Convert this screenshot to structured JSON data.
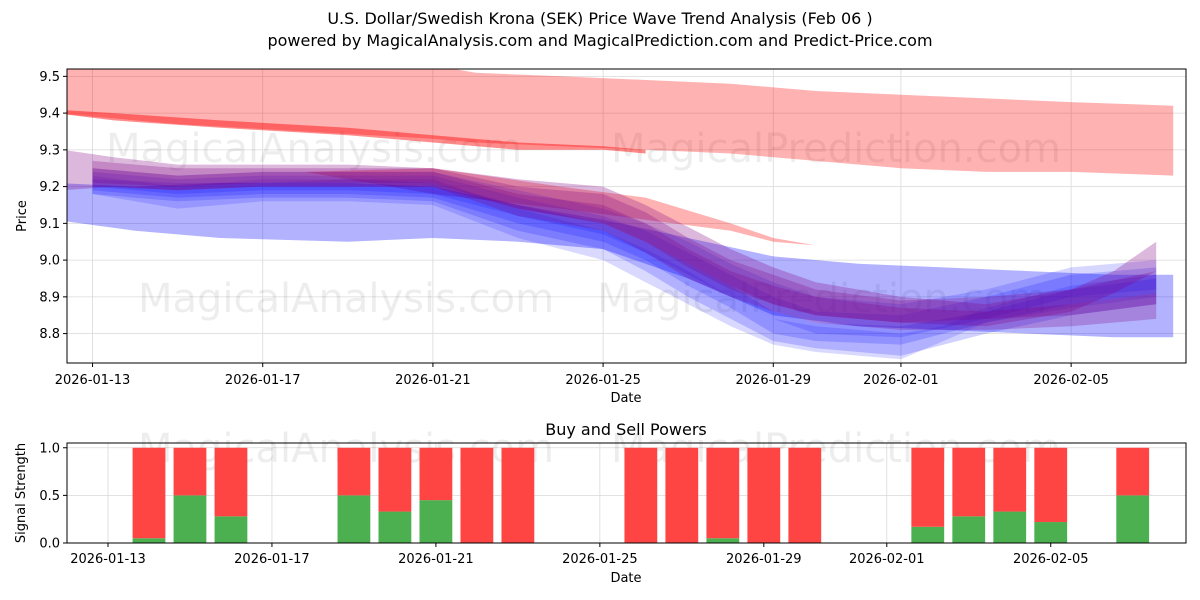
{
  "header": {
    "title": "U.S. Dollar/Swedish Krona (SEK) Price Wave Trend Analysis (Feb 06 )",
    "subtitle": "powered by MagicalAnalysis.com and MagicalPrediction.com and Predict-Price.com"
  },
  "watermarks": [
    "MagicalAnalysis.com",
    "MagicalPrediction.com"
  ],
  "colors": {
    "red_band": "#ff0000",
    "blue_band": "#0000ff",
    "purple_band": "#800080",
    "buy": "#4caf50",
    "sell": "#ff4444",
    "grid": "#d9d9d9"
  },
  "chart_data": [
    {
      "type": "area",
      "title": "",
      "xlabel": "Date",
      "ylabel": "Price",
      "xlim_days": [
        -0.6,
        25.7
      ],
      "x_origin_date": "2026-01-13",
      "ylim": [
        8.72,
        9.52
      ],
      "x_ticks": [
        "2026-01-13",
        "2026-01-17",
        "2026-01-21",
        "2026-01-25",
        "2026-01-29",
        "2026-02-01",
        "2026-02-05"
      ],
      "x_tick_days": [
        0,
        4,
        8,
        12,
        16,
        19,
        23
      ],
      "y_ticks": [
        "8.8",
        "8.9",
        "9.0",
        "9.1",
        "9.2",
        "9.3",
        "9.4",
        "9.5"
      ],
      "y_tick_values": [
        8.8,
        8.9,
        9.0,
        9.1,
        9.2,
        9.3,
        9.4,
        9.5
      ],
      "series": [
        {
          "name": "red-band-upper",
          "color": "red",
          "opacity": 0.3,
          "x": [
            -0.9,
            2,
            5,
            8,
            9,
            11,
            13,
            15,
            17,
            19,
            21,
            23,
            25.4
          ],
          "upper": [
            9.55,
            9.55,
            9.55,
            9.53,
            9.51,
            9.5,
            9.49,
            9.48,
            9.46,
            9.45,
            9.44,
            9.43,
            9.42
          ],
          "lower": [
            9.4,
            9.37,
            9.35,
            9.33,
            9.32,
            9.31,
            9.3,
            9.29,
            9.27,
            9.25,
            9.24,
            9.24,
            9.23
          ]
        },
        {
          "name": "red-band-lower",
          "color": "red",
          "opacity": 0.3,
          "x": [
            -0.9,
            2,
            5,
            8,
            11,
            13,
            15,
            16,
            17,
            19,
            21,
            23,
            25.4
          ],
          "upper": [
            9.22,
            9.24,
            9.24,
            9.25,
            9.2,
            9.17,
            9.1,
            9.06,
            9.04,
            9.02,
            9.0,
            8.98,
            8.97
          ],
          "lower": [
            9.22,
            9.24,
            9.24,
            9.18,
            9.14,
            9.11,
            9.08,
            9.05,
            9.04,
            9.02,
            9.0,
            8.98,
            8.97
          ]
        },
        {
          "name": "red-trend-line",
          "color": "red",
          "opacity": 0.45,
          "x": [
            -0.9,
            0.5,
            3,
            6,
            8,
            10,
            12,
            13
          ],
          "upper": [
            9.41,
            9.4,
            9.38,
            9.36,
            9.34,
            9.32,
            9.31,
            9.3
          ],
          "lower": [
            9.4,
            9.38,
            9.36,
            9.34,
            9.32,
            9.3,
            9.3,
            9.29
          ]
        },
        {
          "name": "blue-band-wide",
          "color": "blue",
          "opacity": 0.3,
          "x": [
            -0.9,
            1,
            3,
            6,
            8,
            10,
            12,
            14,
            16,
            18,
            20,
            22,
            24,
            25.4
          ],
          "upper": [
            9.21,
            9.2,
            9.21,
            9.21,
            9.2,
            9.15,
            9.11,
            9.06,
            9.01,
            8.99,
            8.98,
            8.97,
            8.96,
            8.96
          ],
          "lower": [
            9.11,
            9.08,
            9.06,
            9.05,
            9.06,
            9.05,
            9.03,
            8.95,
            8.85,
            8.82,
            8.81,
            8.8,
            8.79,
            8.79
          ]
        },
        {
          "name": "blue-wave-1",
          "color": "blue",
          "opacity": 0.18,
          "x": [
            0,
            2,
            4,
            6,
            8,
            10,
            12,
            13,
            14,
            15,
            16,
            17,
            19,
            21,
            23,
            25
          ],
          "upper": [
            9.24,
            9.22,
            9.23,
            9.23,
            9.23,
            9.17,
            9.12,
            9.08,
            9.02,
            8.96,
            8.9,
            8.86,
            8.85,
            8.9,
            8.96,
            8.98
          ],
          "lower": [
            9.19,
            9.17,
            9.18,
            9.18,
            9.17,
            9.1,
            9.05,
            9.0,
            8.93,
            8.87,
            8.8,
            8.78,
            8.77,
            8.83,
            8.88,
            8.91
          ]
        },
        {
          "name": "blue-wave-2",
          "color": "blue",
          "opacity": 0.18,
          "x": [
            0,
            2,
            4,
            6,
            8,
            10,
            12,
            13,
            14,
            15,
            16,
            17,
            19,
            21,
            23,
            25
          ],
          "upper": [
            9.22,
            9.21,
            9.21,
            9.22,
            9.21,
            9.15,
            9.1,
            9.05,
            8.99,
            8.93,
            8.86,
            8.83,
            8.82,
            8.86,
            8.92,
            8.95
          ],
          "lower": [
            9.18,
            9.16,
            9.17,
            9.17,
            9.16,
            9.08,
            9.03,
            8.97,
            8.9,
            8.84,
            8.78,
            8.76,
            8.74,
            8.8,
            8.85,
            8.88
          ]
        },
        {
          "name": "blue-wave-3",
          "color": "blue",
          "opacity": 0.16,
          "x": [
            0,
            2,
            4,
            6,
            8,
            10,
            12,
            13,
            14,
            15,
            16,
            17,
            19,
            21,
            23,
            25
          ],
          "upper": [
            9.25,
            9.23,
            9.24,
            9.24,
            9.24,
            9.19,
            9.14,
            9.1,
            9.05,
            8.99,
            8.94,
            8.9,
            8.88,
            8.92,
            8.98,
            9.0
          ],
          "lower": [
            9.2,
            9.18,
            9.19,
            9.19,
            9.18,
            9.12,
            9.07,
            9.02,
            8.96,
            8.9,
            8.84,
            8.8,
            8.79,
            8.84,
            8.9,
            8.92
          ]
        },
        {
          "name": "blue-wave-4",
          "color": "blue",
          "opacity": 0.15,
          "x": [
            0,
            2,
            4,
            6,
            8,
            10,
            12,
            13,
            14,
            15,
            16,
            17,
            19,
            20,
            21,
            23,
            25
          ],
          "upper": [
            9.23,
            9.2,
            9.22,
            9.22,
            9.22,
            9.14,
            9.08,
            9.03,
            8.97,
            8.9,
            8.84,
            8.82,
            8.8,
            8.82,
            8.87,
            8.93,
            8.96
          ],
          "lower": [
            9.18,
            9.14,
            9.16,
            9.16,
            9.15,
            9.06,
            9.0,
            8.94,
            8.88,
            8.82,
            8.77,
            8.75,
            8.73,
            8.78,
            8.83,
            8.87,
            8.9
          ]
        },
        {
          "name": "purple-wave-1",
          "color": "purple",
          "opacity": 0.28,
          "x": [
            -0.7,
            0.5,
            2,
            4,
            6,
            8,
            10,
            12,
            13,
            14,
            15,
            16,
            17,
            19,
            21,
            23,
            24,
            25
          ],
          "upper": [
            9.3,
            9.28,
            9.26,
            9.26,
            9.26,
            9.25,
            9.22,
            9.2,
            9.15,
            9.09,
            9.03,
            8.98,
            8.94,
            8.9,
            8.88,
            8.92,
            8.97,
            9.05
          ],
          "lower": [
            9.19,
            9.2,
            9.19,
            9.2,
            9.2,
            9.2,
            9.14,
            9.1,
            9.05,
            8.99,
            8.93,
            8.88,
            8.85,
            8.83,
            8.82,
            8.86,
            8.91,
            8.97
          ]
        },
        {
          "name": "purple-wave-2",
          "color": "purple",
          "opacity": 0.26,
          "x": [
            0,
            2,
            4,
            6,
            8,
            10,
            12,
            13,
            14,
            15,
            16,
            17,
            19,
            21,
            23,
            25
          ],
          "upper": [
            9.27,
            9.25,
            9.25,
            9.25,
            9.25,
            9.2,
            9.18,
            9.13,
            9.06,
            9.0,
            8.96,
            8.92,
            8.89,
            8.9,
            8.92,
            8.97
          ],
          "lower": [
            9.21,
            9.2,
            9.21,
            9.21,
            9.21,
            9.14,
            9.1,
            9.05,
            8.98,
            8.92,
            8.88,
            8.85,
            8.83,
            8.84,
            8.85,
            8.88
          ]
        },
        {
          "name": "purple-wave-3",
          "color": "purple",
          "opacity": 0.26,
          "x": [
            0,
            2,
            4,
            6,
            8,
            10,
            12,
            13,
            14,
            15,
            16,
            17,
            19,
            21,
            23,
            25
          ],
          "upper": [
            9.25,
            9.23,
            9.24,
            9.24,
            9.24,
            9.18,
            9.15,
            9.1,
            9.03,
            8.97,
            8.93,
            8.9,
            8.87,
            8.86,
            8.88,
            8.91
          ],
          "lower": [
            9.2,
            9.19,
            9.2,
            9.2,
            9.2,
            9.12,
            9.08,
            9.02,
            8.95,
            8.9,
            8.86,
            8.83,
            8.81,
            8.81,
            8.82,
            8.84
          ]
        }
      ]
    },
    {
      "type": "bar",
      "title": "Buy and Sell Powers",
      "xlabel": "Date",
      "ylabel": "Signal Strength",
      "xlim_days": [
        -1.0,
        26.3
      ],
      "x_origin_date": "2026-01-13",
      "ylim": [
        0,
        1.05
      ],
      "x_ticks": [
        "2026-01-13",
        "2026-01-17",
        "2026-01-21",
        "2026-01-25",
        "2026-01-29",
        "2026-02-01",
        "2026-02-05"
      ],
      "x_tick_days": [
        0,
        4,
        8,
        12,
        16,
        19,
        23
      ],
      "y_ticks": [
        "0.0",
        "0.5",
        "1.0"
      ],
      "y_tick_values": [
        0.0,
        0.5,
        1.0
      ],
      "bar_width_days": 0.8,
      "bars": [
        {
          "day": 1,
          "buy": 0.05,
          "sell": 0.95
        },
        {
          "day": 2,
          "buy": 0.5,
          "sell": 0.5
        },
        {
          "day": 3,
          "buy": 0.28,
          "sell": 0.72
        },
        {
          "day": 6,
          "buy": 0.5,
          "sell": 0.5
        },
        {
          "day": 7,
          "buy": 0.33,
          "sell": 0.67
        },
        {
          "day": 8,
          "buy": 0.45,
          "sell": 0.55
        },
        {
          "day": 9,
          "buy": 0.0,
          "sell": 1.0
        },
        {
          "day": 10,
          "buy": 0.0,
          "sell": 1.0
        },
        {
          "day": 13,
          "buy": 0.0,
          "sell": 1.0
        },
        {
          "day": 14,
          "buy": 0.0,
          "sell": 1.0
        },
        {
          "day": 15,
          "buy": 0.05,
          "sell": 0.95
        },
        {
          "day": 16,
          "buy": 0.0,
          "sell": 1.0
        },
        {
          "day": 17,
          "buy": 0.0,
          "sell": 1.0
        },
        {
          "day": 20,
          "buy": 0.17,
          "sell": 0.83
        },
        {
          "day": 21,
          "buy": 0.28,
          "sell": 0.72
        },
        {
          "day": 22,
          "buy": 0.33,
          "sell": 0.67
        },
        {
          "day": 23,
          "buy": 0.22,
          "sell": 0.78
        },
        {
          "day": 25,
          "buy": 0.5,
          "sell": 0.5
        }
      ]
    }
  ]
}
